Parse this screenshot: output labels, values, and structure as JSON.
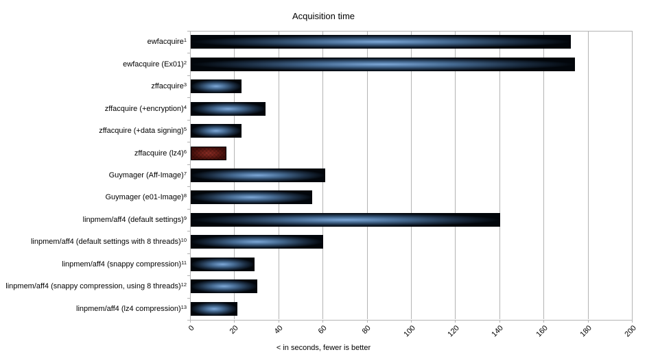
{
  "chart_data": {
    "type": "bar",
    "orientation": "horizontal",
    "title": "Acquisition time",
    "xlabel": "< in seconds, fewer is better",
    "xlim": [
      0,
      200
    ],
    "xticks": [
      0,
      20,
      40,
      60,
      80,
      100,
      120,
      140,
      160,
      180,
      200
    ],
    "grid": "vertical",
    "legend": "none",
    "categories": [
      {
        "label": "ewfacquire",
        "footnote": "1"
      },
      {
        "label": "ewfacquire (Ex01)",
        "footnote": "2"
      },
      {
        "label": "zffacquire",
        "footnote": "3"
      },
      {
        "label": "zffacquire (+encryption)",
        "footnote": "4"
      },
      {
        "label": "zffacquire (+data signing)",
        "footnote": "5"
      },
      {
        "label": "zffacquire (lz4)",
        "footnote": "6"
      },
      {
        "label": "Guymager (Aff-Image)",
        "footnote": "7"
      },
      {
        "label": "Guymager (e01-Image)",
        "footnote": "8"
      },
      {
        "label": "linpmem/aff4 (default settings)",
        "footnote": "9"
      },
      {
        "label": "linpmem/aff4 (default settings with 8 threads)",
        "footnote": "10"
      },
      {
        "label": "linpmem/aff4 (snappy compression)",
        "footnote": "11"
      },
      {
        "label": "linpmem/aff4 (snappy compression, using 8 threads)",
        "footnote": "12"
      },
      {
        "label": "linpmem/aff4 (lz4 compression)",
        "footnote": "13"
      }
    ],
    "values": [
      172,
      174,
      23,
      34,
      23,
      16,
      61,
      55,
      140,
      60,
      29,
      30,
      21
    ],
    "highlight_index": 5,
    "colors": {
      "background": "#ffffff",
      "gridline": "#b3b3b3",
      "text": "#000000",
      "bar_gradient": [
        "#7da8d8",
        "#44688f",
        "#1b2d42",
        "#02060b"
      ],
      "highlight_gradient": [
        "#8b2d25",
        "#712019",
        "#420f0a"
      ],
      "highlight_border": "#000000"
    }
  }
}
